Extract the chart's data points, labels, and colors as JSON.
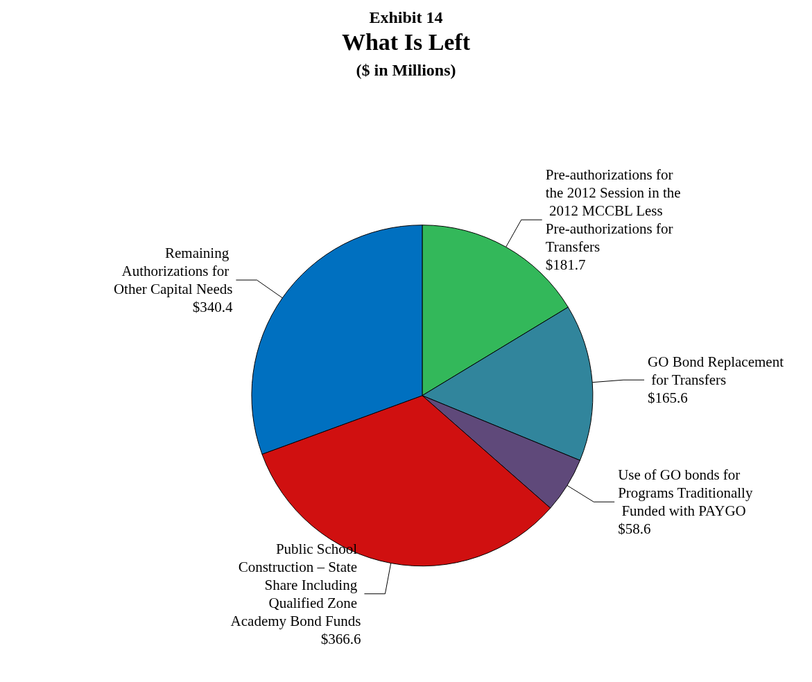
{
  "chart_data": {
    "type": "pie",
    "title": "What Is Left",
    "subtitle": "($ in Millions)",
    "annotations": [
      "Exhibit 14"
    ],
    "categories": [
      "Pre-authorizations for the 2012 Session in the 2012 MCCBL Less Pre-authorizations for Transfers",
      "GO Bond Replacement for Transfers",
      "Use of GO bonds for Programs Traditionally Funded with PAYGO",
      "Public School Construction – State Share Including Qualified Zone Academy Bond Funds",
      "Remaining Authorizations for Other Capital Needs"
    ],
    "values": [
      181.7,
      165.6,
      58.6,
      366.6,
      340.4
    ],
    "value_labels": [
      "$181.7",
      "$165.6",
      "$58.6",
      "$366.6",
      "$340.4"
    ],
    "colors": [
      "#33b85a",
      "#31859c",
      "#5f497a",
      "#d01010",
      "#0070c0"
    ],
    "legend": false
  }
}
